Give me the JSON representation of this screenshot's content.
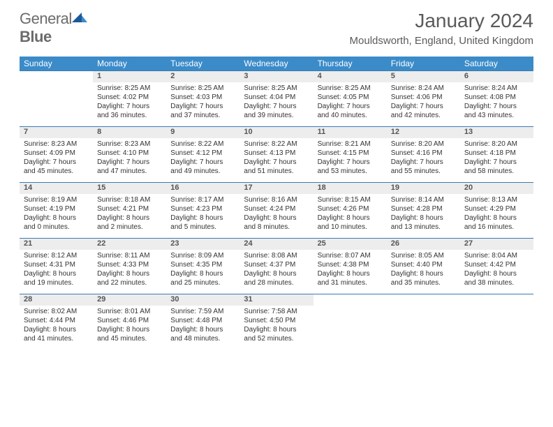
{
  "logo": {
    "word1": "General",
    "word2": "Blue"
  },
  "title": "January 2024",
  "location": "Mouldsworth, England, United Kingdom",
  "header_bg": "#3b8bc9",
  "daynum_bg": "#ededed",
  "border_color": "#3b7bb0",
  "weekdays": [
    "Sunday",
    "Monday",
    "Tuesday",
    "Wednesday",
    "Thursday",
    "Friday",
    "Saturday"
  ],
  "weeks": [
    {
      "nums": [
        "",
        "1",
        "2",
        "3",
        "4",
        "5",
        "6"
      ],
      "cells": [
        null,
        {
          "sunrise": "Sunrise: 8:25 AM",
          "sunset": "Sunset: 4:02 PM",
          "day1": "Daylight: 7 hours",
          "day2": "and 36 minutes."
        },
        {
          "sunrise": "Sunrise: 8:25 AM",
          "sunset": "Sunset: 4:03 PM",
          "day1": "Daylight: 7 hours",
          "day2": "and 37 minutes."
        },
        {
          "sunrise": "Sunrise: 8:25 AM",
          "sunset": "Sunset: 4:04 PM",
          "day1": "Daylight: 7 hours",
          "day2": "and 39 minutes."
        },
        {
          "sunrise": "Sunrise: 8:25 AM",
          "sunset": "Sunset: 4:05 PM",
          "day1": "Daylight: 7 hours",
          "day2": "and 40 minutes."
        },
        {
          "sunrise": "Sunrise: 8:24 AM",
          "sunset": "Sunset: 4:06 PM",
          "day1": "Daylight: 7 hours",
          "day2": "and 42 minutes."
        },
        {
          "sunrise": "Sunrise: 8:24 AM",
          "sunset": "Sunset: 4:08 PM",
          "day1": "Daylight: 7 hours",
          "day2": "and 43 minutes."
        }
      ]
    },
    {
      "nums": [
        "7",
        "8",
        "9",
        "10",
        "11",
        "12",
        "13"
      ],
      "cells": [
        {
          "sunrise": "Sunrise: 8:23 AM",
          "sunset": "Sunset: 4:09 PM",
          "day1": "Daylight: 7 hours",
          "day2": "and 45 minutes."
        },
        {
          "sunrise": "Sunrise: 8:23 AM",
          "sunset": "Sunset: 4:10 PM",
          "day1": "Daylight: 7 hours",
          "day2": "and 47 minutes."
        },
        {
          "sunrise": "Sunrise: 8:22 AM",
          "sunset": "Sunset: 4:12 PM",
          "day1": "Daylight: 7 hours",
          "day2": "and 49 minutes."
        },
        {
          "sunrise": "Sunrise: 8:22 AM",
          "sunset": "Sunset: 4:13 PM",
          "day1": "Daylight: 7 hours",
          "day2": "and 51 minutes."
        },
        {
          "sunrise": "Sunrise: 8:21 AM",
          "sunset": "Sunset: 4:15 PM",
          "day1": "Daylight: 7 hours",
          "day2": "and 53 minutes."
        },
        {
          "sunrise": "Sunrise: 8:20 AM",
          "sunset": "Sunset: 4:16 PM",
          "day1": "Daylight: 7 hours",
          "day2": "and 55 minutes."
        },
        {
          "sunrise": "Sunrise: 8:20 AM",
          "sunset": "Sunset: 4:18 PM",
          "day1": "Daylight: 7 hours",
          "day2": "and 58 minutes."
        }
      ]
    },
    {
      "nums": [
        "14",
        "15",
        "16",
        "17",
        "18",
        "19",
        "20"
      ],
      "cells": [
        {
          "sunrise": "Sunrise: 8:19 AM",
          "sunset": "Sunset: 4:19 PM",
          "day1": "Daylight: 8 hours",
          "day2": "and 0 minutes."
        },
        {
          "sunrise": "Sunrise: 8:18 AM",
          "sunset": "Sunset: 4:21 PM",
          "day1": "Daylight: 8 hours",
          "day2": "and 2 minutes."
        },
        {
          "sunrise": "Sunrise: 8:17 AM",
          "sunset": "Sunset: 4:23 PM",
          "day1": "Daylight: 8 hours",
          "day2": "and 5 minutes."
        },
        {
          "sunrise": "Sunrise: 8:16 AM",
          "sunset": "Sunset: 4:24 PM",
          "day1": "Daylight: 8 hours",
          "day2": "and 8 minutes."
        },
        {
          "sunrise": "Sunrise: 8:15 AM",
          "sunset": "Sunset: 4:26 PM",
          "day1": "Daylight: 8 hours",
          "day2": "and 10 minutes."
        },
        {
          "sunrise": "Sunrise: 8:14 AM",
          "sunset": "Sunset: 4:28 PM",
          "day1": "Daylight: 8 hours",
          "day2": "and 13 minutes."
        },
        {
          "sunrise": "Sunrise: 8:13 AM",
          "sunset": "Sunset: 4:29 PM",
          "day1": "Daylight: 8 hours",
          "day2": "and 16 minutes."
        }
      ]
    },
    {
      "nums": [
        "21",
        "22",
        "23",
        "24",
        "25",
        "26",
        "27"
      ],
      "cells": [
        {
          "sunrise": "Sunrise: 8:12 AM",
          "sunset": "Sunset: 4:31 PM",
          "day1": "Daylight: 8 hours",
          "day2": "and 19 minutes."
        },
        {
          "sunrise": "Sunrise: 8:11 AM",
          "sunset": "Sunset: 4:33 PM",
          "day1": "Daylight: 8 hours",
          "day2": "and 22 minutes."
        },
        {
          "sunrise": "Sunrise: 8:09 AM",
          "sunset": "Sunset: 4:35 PM",
          "day1": "Daylight: 8 hours",
          "day2": "and 25 minutes."
        },
        {
          "sunrise": "Sunrise: 8:08 AM",
          "sunset": "Sunset: 4:37 PM",
          "day1": "Daylight: 8 hours",
          "day2": "and 28 minutes."
        },
        {
          "sunrise": "Sunrise: 8:07 AM",
          "sunset": "Sunset: 4:38 PM",
          "day1": "Daylight: 8 hours",
          "day2": "and 31 minutes."
        },
        {
          "sunrise": "Sunrise: 8:05 AM",
          "sunset": "Sunset: 4:40 PM",
          "day1": "Daylight: 8 hours",
          "day2": "and 35 minutes."
        },
        {
          "sunrise": "Sunrise: 8:04 AM",
          "sunset": "Sunset: 4:42 PM",
          "day1": "Daylight: 8 hours",
          "day2": "and 38 minutes."
        }
      ]
    },
    {
      "nums": [
        "28",
        "29",
        "30",
        "31",
        "",
        "",
        ""
      ],
      "cells": [
        {
          "sunrise": "Sunrise: 8:02 AM",
          "sunset": "Sunset: 4:44 PM",
          "day1": "Daylight: 8 hours",
          "day2": "and 41 minutes."
        },
        {
          "sunrise": "Sunrise: 8:01 AM",
          "sunset": "Sunset: 4:46 PM",
          "day1": "Daylight: 8 hours",
          "day2": "and 45 minutes."
        },
        {
          "sunrise": "Sunrise: 7:59 AM",
          "sunset": "Sunset: 4:48 PM",
          "day1": "Daylight: 8 hours",
          "day2": "and 48 minutes."
        },
        {
          "sunrise": "Sunrise: 7:58 AM",
          "sunset": "Sunset: 4:50 PM",
          "day1": "Daylight: 8 hours",
          "day2": "and 52 minutes."
        },
        null,
        null,
        null
      ]
    }
  ]
}
